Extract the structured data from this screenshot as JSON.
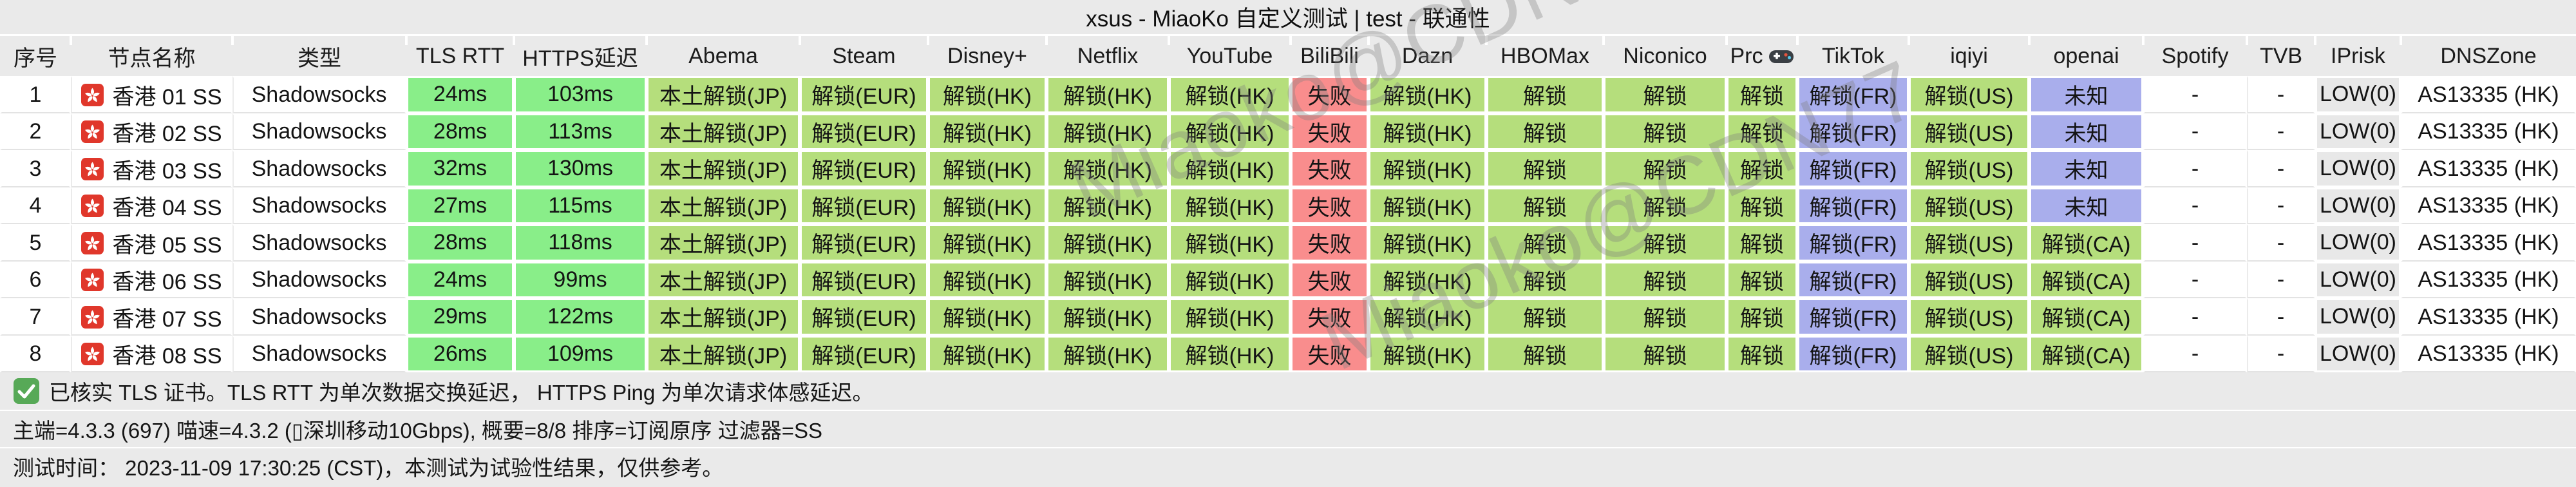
{
  "title": "xsus - MiaoKo 自定义测试 | test - 联通性",
  "watermark": {
    "text": "Miaoko@CDN77"
  },
  "colors": {
    "latency_ok": "#89EE89",
    "unlock_ok": "#B5DE7C",
    "fail_red": "#F98D8D",
    "info_purple": "#A9AEEC",
    "risk_low_gray": "#E8E8E8",
    "check_green": "#57A957",
    "flag_red": "#E0372B",
    "page_bg": "#EAEAEA"
  },
  "table": {
    "columns": [
      {
        "label": "序号"
      },
      {
        "label": "节点名称"
      },
      {
        "label": "类型"
      },
      {
        "label": "TLS RTT"
      },
      {
        "label": "HTTPS延迟"
      },
      {
        "label": "Abema"
      },
      {
        "label": "Steam"
      },
      {
        "label": "Disney+"
      },
      {
        "label": "Netflix"
      },
      {
        "label": "YouTube"
      },
      {
        "label": "BiliBili"
      },
      {
        "label": "Dazn"
      },
      {
        "label": "HBOMax"
      },
      {
        "label": "Niconico"
      },
      {
        "label": "Prc",
        "icon": "gamepad-icon"
      },
      {
        "label": "TikTok"
      },
      {
        "label": "iqiyi"
      },
      {
        "label": "openai"
      },
      {
        "label": "Spotify"
      },
      {
        "label": "TVB"
      },
      {
        "label": "IPrisk"
      },
      {
        "label": "DNSZone"
      }
    ],
    "rows": [
      {
        "no": "1",
        "flag": "hk-flag-icon",
        "name": "香港 01 SS",
        "type": "Shadowsocks",
        "tls_rtt": "24ms",
        "https_delay": "103ms",
        "services": [
          {
            "text": "本土解锁(JP)",
            "status": "ok"
          },
          {
            "text": "解锁(EUR)",
            "status": "ok"
          },
          {
            "text": "解锁(HK)",
            "status": "ok"
          },
          {
            "text": "解锁(HK)",
            "status": "ok"
          },
          {
            "text": "解锁(HK)",
            "status": "ok"
          },
          {
            "text": "失败",
            "status": "fail"
          },
          {
            "text": "解锁(HK)",
            "status": "ok"
          },
          {
            "text": "解锁",
            "status": "ok"
          },
          {
            "text": "解锁",
            "status": "ok"
          },
          {
            "text": "解锁",
            "status": "ok"
          },
          {
            "text": "解锁(FR)",
            "status": "info"
          },
          {
            "text": "解锁(US)",
            "status": "ok"
          },
          {
            "text": "未知",
            "status": "info"
          },
          {
            "text": "-",
            "status": "none"
          },
          {
            "text": "-",
            "status": "none"
          }
        ],
        "ip_risk": "LOW(0)",
        "dns_zone": "AS13335 (HK)"
      },
      {
        "no": "2",
        "flag": "hk-flag-icon",
        "name": "香港 02 SS",
        "type": "Shadowsocks",
        "tls_rtt": "28ms",
        "https_delay": "113ms",
        "services": [
          {
            "text": "本土解锁(JP)",
            "status": "ok"
          },
          {
            "text": "解锁(EUR)",
            "status": "ok"
          },
          {
            "text": "解锁(HK)",
            "status": "ok"
          },
          {
            "text": "解锁(HK)",
            "status": "ok"
          },
          {
            "text": "解锁(HK)",
            "status": "ok"
          },
          {
            "text": "失败",
            "status": "fail"
          },
          {
            "text": "解锁(HK)",
            "status": "ok"
          },
          {
            "text": "解锁",
            "status": "ok"
          },
          {
            "text": "解锁",
            "status": "ok"
          },
          {
            "text": "解锁",
            "status": "ok"
          },
          {
            "text": "解锁(FR)",
            "status": "info"
          },
          {
            "text": "解锁(US)",
            "status": "ok"
          },
          {
            "text": "未知",
            "status": "info"
          },
          {
            "text": "-",
            "status": "none"
          },
          {
            "text": "-",
            "status": "none"
          }
        ],
        "ip_risk": "LOW(0)",
        "dns_zone": "AS13335 (HK)"
      },
      {
        "no": "3",
        "flag": "hk-flag-icon",
        "name": "香港 03 SS",
        "type": "Shadowsocks",
        "tls_rtt": "32ms",
        "https_delay": "130ms",
        "services": [
          {
            "text": "本土解锁(JP)",
            "status": "ok"
          },
          {
            "text": "解锁(EUR)",
            "status": "ok"
          },
          {
            "text": "解锁(HK)",
            "status": "ok"
          },
          {
            "text": "解锁(HK)",
            "status": "ok"
          },
          {
            "text": "解锁(HK)",
            "status": "ok"
          },
          {
            "text": "失败",
            "status": "fail"
          },
          {
            "text": "解锁(HK)",
            "status": "ok"
          },
          {
            "text": "解锁",
            "status": "ok"
          },
          {
            "text": "解锁",
            "status": "ok"
          },
          {
            "text": "解锁",
            "status": "ok"
          },
          {
            "text": "解锁(FR)",
            "status": "info"
          },
          {
            "text": "解锁(US)",
            "status": "ok"
          },
          {
            "text": "未知",
            "status": "info"
          },
          {
            "text": "-",
            "status": "none"
          },
          {
            "text": "-",
            "status": "none"
          }
        ],
        "ip_risk": "LOW(0)",
        "dns_zone": "AS13335 (HK)"
      },
      {
        "no": "4",
        "flag": "hk-flag-icon",
        "name": "香港 04 SS",
        "type": "Shadowsocks",
        "tls_rtt": "27ms",
        "https_delay": "115ms",
        "services": [
          {
            "text": "本土解锁(JP)",
            "status": "ok"
          },
          {
            "text": "解锁(EUR)",
            "status": "ok"
          },
          {
            "text": "解锁(HK)",
            "status": "ok"
          },
          {
            "text": "解锁(HK)",
            "status": "ok"
          },
          {
            "text": "解锁(HK)",
            "status": "ok"
          },
          {
            "text": "失败",
            "status": "fail"
          },
          {
            "text": "解锁(HK)",
            "status": "ok"
          },
          {
            "text": "解锁",
            "status": "ok"
          },
          {
            "text": "解锁",
            "status": "ok"
          },
          {
            "text": "解锁",
            "status": "ok"
          },
          {
            "text": "解锁(FR)",
            "status": "info"
          },
          {
            "text": "解锁(US)",
            "status": "ok"
          },
          {
            "text": "未知",
            "status": "info"
          },
          {
            "text": "-",
            "status": "none"
          },
          {
            "text": "-",
            "status": "none"
          }
        ],
        "ip_risk": "LOW(0)",
        "dns_zone": "AS13335 (HK)"
      },
      {
        "no": "5",
        "flag": "hk-flag-icon",
        "name": "香港 05 SS",
        "type": "Shadowsocks",
        "tls_rtt": "28ms",
        "https_delay": "118ms",
        "services": [
          {
            "text": "本土解锁(JP)",
            "status": "ok"
          },
          {
            "text": "解锁(EUR)",
            "status": "ok"
          },
          {
            "text": "解锁(HK)",
            "status": "ok"
          },
          {
            "text": "解锁(HK)",
            "status": "ok"
          },
          {
            "text": "解锁(HK)",
            "status": "ok"
          },
          {
            "text": "失败",
            "status": "fail"
          },
          {
            "text": "解锁(HK)",
            "status": "ok"
          },
          {
            "text": "解锁",
            "status": "ok"
          },
          {
            "text": "解锁",
            "status": "ok"
          },
          {
            "text": "解锁",
            "status": "ok"
          },
          {
            "text": "解锁(FR)",
            "status": "info"
          },
          {
            "text": "解锁(US)",
            "status": "ok"
          },
          {
            "text": "解锁(CA)",
            "status": "ok"
          },
          {
            "text": "-",
            "status": "none"
          },
          {
            "text": "-",
            "status": "none"
          }
        ],
        "ip_risk": "LOW(0)",
        "dns_zone": "AS13335 (HK)"
      },
      {
        "no": "6",
        "flag": "hk-flag-icon",
        "name": "香港 06 SS",
        "type": "Shadowsocks",
        "tls_rtt": "24ms",
        "https_delay": "99ms",
        "services": [
          {
            "text": "本土解锁(JP)",
            "status": "ok"
          },
          {
            "text": "解锁(EUR)",
            "status": "ok"
          },
          {
            "text": "解锁(HK)",
            "status": "ok"
          },
          {
            "text": "解锁(HK)",
            "status": "ok"
          },
          {
            "text": "解锁(HK)",
            "status": "ok"
          },
          {
            "text": "失败",
            "status": "fail"
          },
          {
            "text": "解锁(HK)",
            "status": "ok"
          },
          {
            "text": "解锁",
            "status": "ok"
          },
          {
            "text": "解锁",
            "status": "ok"
          },
          {
            "text": "解锁",
            "status": "ok"
          },
          {
            "text": "解锁(FR)",
            "status": "info"
          },
          {
            "text": "解锁(US)",
            "status": "ok"
          },
          {
            "text": "解锁(CA)",
            "status": "ok"
          },
          {
            "text": "-",
            "status": "none"
          },
          {
            "text": "-",
            "status": "none"
          }
        ],
        "ip_risk": "LOW(0)",
        "dns_zone": "AS13335 (HK)"
      },
      {
        "no": "7",
        "flag": "hk-flag-icon",
        "name": "香港 07 SS",
        "type": "Shadowsocks",
        "tls_rtt": "29ms",
        "https_delay": "122ms",
        "services": [
          {
            "text": "本土解锁(JP)",
            "status": "ok"
          },
          {
            "text": "解锁(EUR)",
            "status": "ok"
          },
          {
            "text": "解锁(HK)",
            "status": "ok"
          },
          {
            "text": "解锁(HK)",
            "status": "ok"
          },
          {
            "text": "解锁(HK)",
            "status": "ok"
          },
          {
            "text": "失败",
            "status": "fail"
          },
          {
            "text": "解锁(HK)",
            "status": "ok"
          },
          {
            "text": "解锁",
            "status": "ok"
          },
          {
            "text": "解锁",
            "status": "ok"
          },
          {
            "text": "解锁",
            "status": "ok"
          },
          {
            "text": "解锁(FR)",
            "status": "info"
          },
          {
            "text": "解锁(US)",
            "status": "ok"
          },
          {
            "text": "解锁(CA)",
            "status": "ok"
          },
          {
            "text": "-",
            "status": "none"
          },
          {
            "text": "-",
            "status": "none"
          }
        ],
        "ip_risk": "LOW(0)",
        "dns_zone": "AS13335 (HK)"
      },
      {
        "no": "8",
        "flag": "hk-flag-icon",
        "name": "香港 08 SS",
        "type": "Shadowsocks",
        "tls_rtt": "26ms",
        "https_delay": "109ms",
        "services": [
          {
            "text": "本土解锁(JP)",
            "status": "ok"
          },
          {
            "text": "解锁(EUR)",
            "status": "ok"
          },
          {
            "text": "解锁(HK)",
            "status": "ok"
          },
          {
            "text": "解锁(HK)",
            "status": "ok"
          },
          {
            "text": "解锁(HK)",
            "status": "ok"
          },
          {
            "text": "失败",
            "status": "fail"
          },
          {
            "text": "解锁(HK)",
            "status": "ok"
          },
          {
            "text": "解锁",
            "status": "ok"
          },
          {
            "text": "解锁",
            "status": "ok"
          },
          {
            "text": "解锁",
            "status": "ok"
          },
          {
            "text": "解锁(FR)",
            "status": "info"
          },
          {
            "text": "解锁(US)",
            "status": "ok"
          },
          {
            "text": "解锁(CA)",
            "status": "ok"
          },
          {
            "text": "-",
            "status": "none"
          },
          {
            "text": "-",
            "status": "none"
          }
        ],
        "ip_risk": "LOW(0)",
        "dns_zone": "AS13335 (HK)"
      }
    ]
  },
  "footer": {
    "line1": "已核实 TLS 证书。TLS RTT 为单次数据交换延迟， HTTPS Ping 为单次请求体感延迟。",
    "line2": "主端=4.3.3 (697) 喵速=4.3.2 (▯深圳移动10Gbps), 概要=8/8 排序=订阅原序 过滤器=SS",
    "line3": "测试时间： 2023-11-09 17:30:25 (CST)，本测试为试验性结果，仅供参考。"
  }
}
